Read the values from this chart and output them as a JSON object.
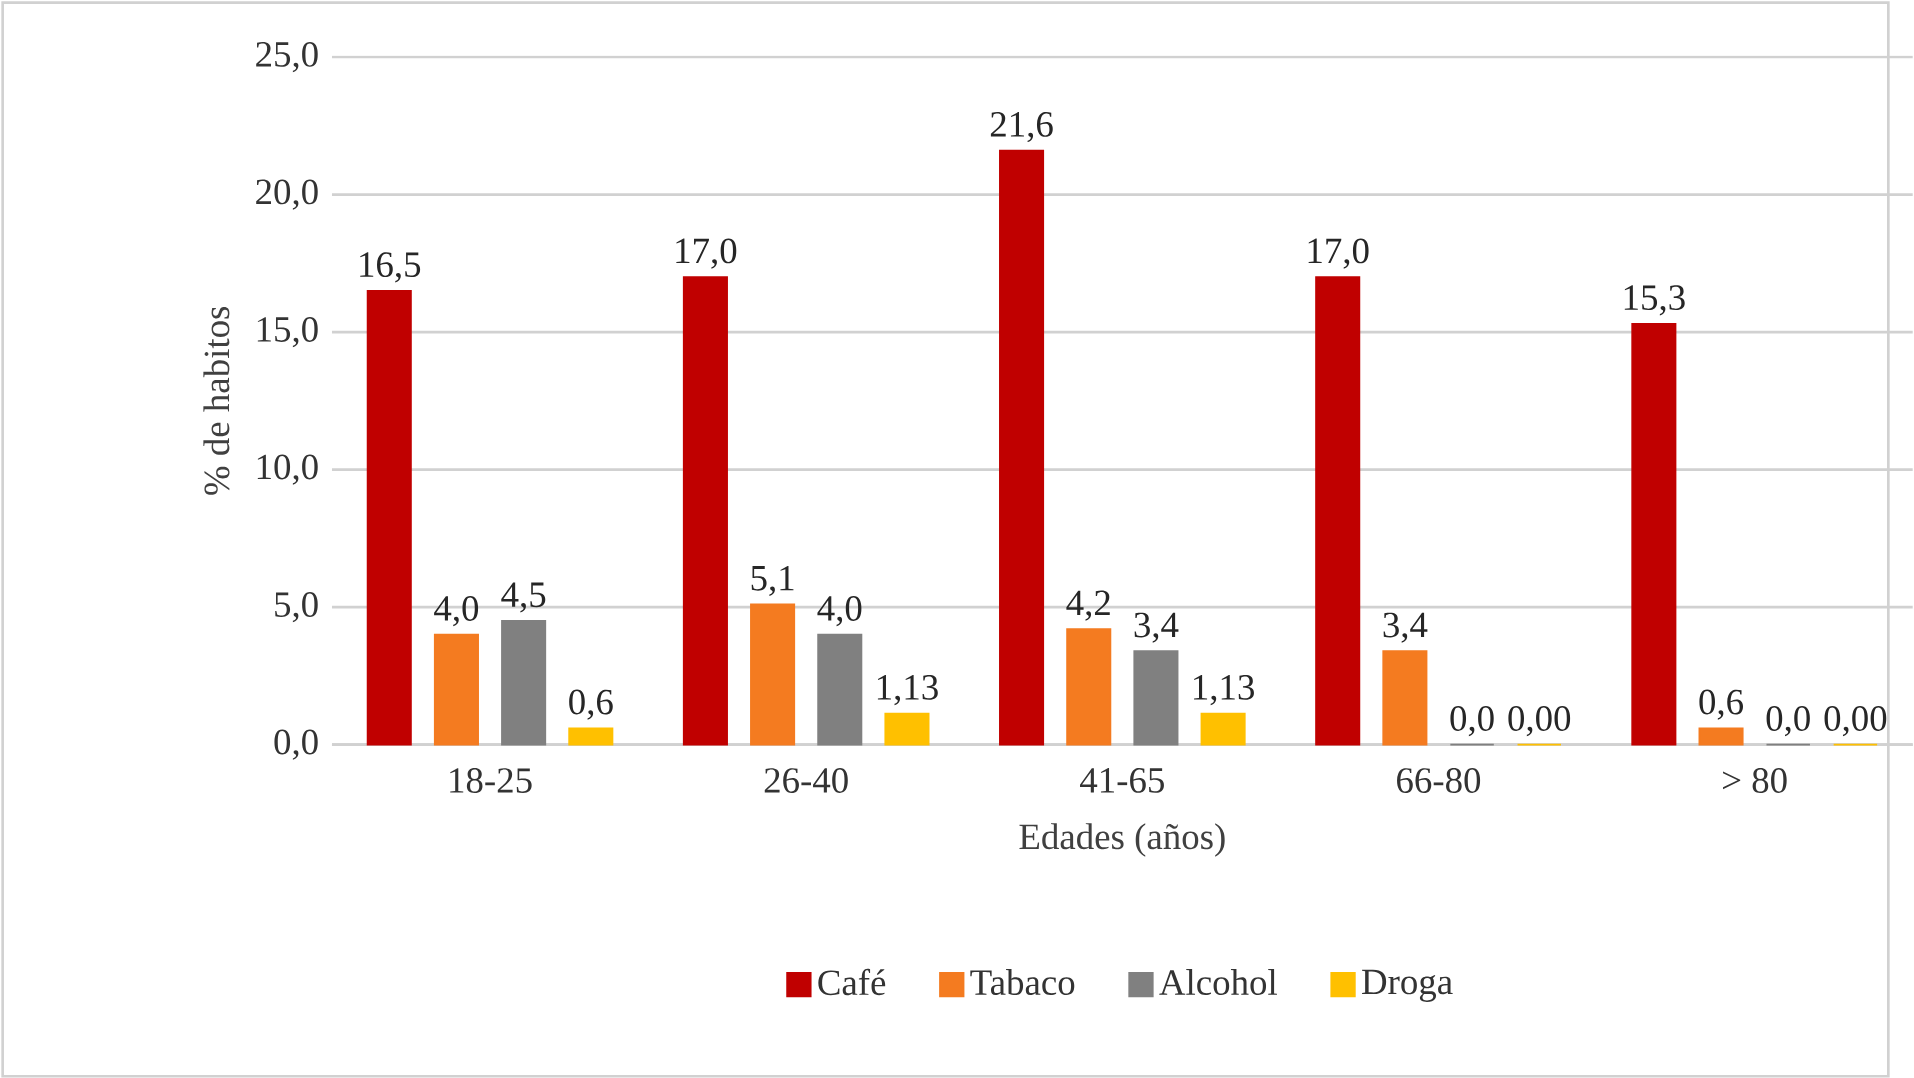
{
  "chart_data": {
    "type": "bar",
    "xlabel": "Edades (años)",
    "ylabel": "% de habitos",
    "categories": [
      "18-25",
      "26-40",
      "41-65",
      "66-80",
      "> 80"
    ],
    "series": [
      {
        "name": "Café",
        "color": "#c00000",
        "values": [
          16.5,
          17.0,
          21.6,
          17.0,
          15.3
        ],
        "value_labels": [
          "16,5",
          "17,0",
          "21,6",
          "17,0",
          "15,3"
        ]
      },
      {
        "name": "Tabaco",
        "color": "#f47b20",
        "values": [
          4.0,
          5.1,
          4.2,
          3.4,
          0.6
        ],
        "value_labels": [
          "4,0",
          "5,1",
          "4,2",
          "3,4",
          "0,6"
        ]
      },
      {
        "name": "Alcohol",
        "color": "#808080",
        "values": [
          4.5,
          4.0,
          3.4,
          0.0,
          0.0
        ],
        "value_labels": [
          "4,5",
          "4,0",
          "3,4",
          "0,0",
          "0,0"
        ]
      },
      {
        "name": "Droga",
        "color": "#ffc000",
        "values": [
          0.6,
          1.13,
          1.13,
          0.0,
          0.0
        ],
        "value_labels": [
          "0,6",
          "1,13",
          "1,13",
          "0,00",
          "0,00"
        ]
      }
    ],
    "ylim": [
      0,
      25
    ],
    "yticks": [
      {
        "value": 0,
        "label": "0,0"
      },
      {
        "value": 5,
        "label": "5,0"
      },
      {
        "value": 10,
        "label": "10,0"
      },
      {
        "value": 15,
        "label": "15,0"
      },
      {
        "value": 20,
        "label": "20,0"
      },
      {
        "value": 25,
        "label": "25,0"
      }
    ],
    "grid": "y",
    "legend": "bottom"
  }
}
